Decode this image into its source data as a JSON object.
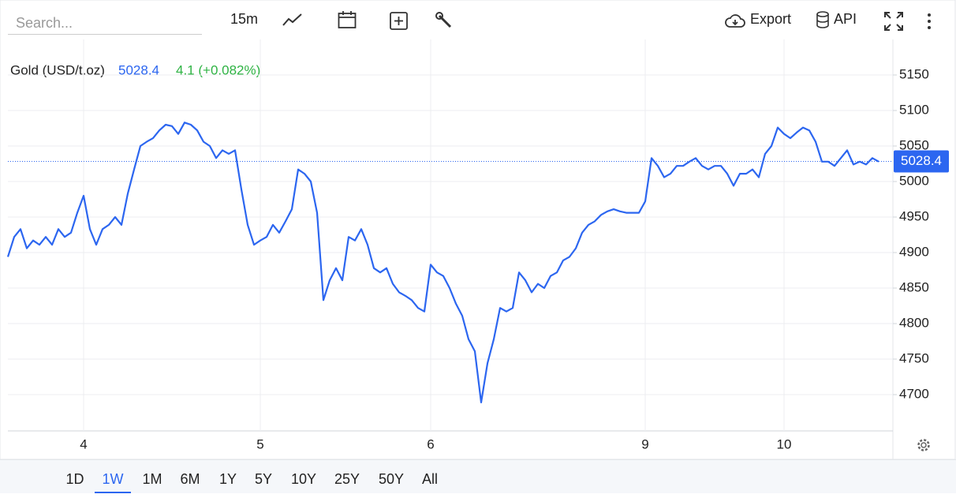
{
  "toolbar": {
    "search_placeholder": "Search...",
    "interval": "15m",
    "export": "Export",
    "api": "API"
  },
  "chart_data": {
    "type": "line",
    "title": "Gold (USD/t.oz)",
    "last_price": 5028.4,
    "change": "4.1 (+0.082%)",
    "color": "#2c66f0",
    "categories": [
      null,
      null,
      null,
      null,
      null,
      null,
      null,
      null,
      null,
      null,
      null,
      null,
      "4",
      null,
      null,
      null,
      null,
      null,
      null,
      null,
      null,
      null,
      null,
      null,
      null,
      null,
      null,
      null,
      null,
      null,
      null,
      null,
      null,
      null,
      null,
      null,
      null,
      null,
      null,
      null,
      "5",
      null,
      null,
      null,
      null,
      null,
      null,
      null,
      null,
      null,
      null,
      null,
      null,
      null,
      null,
      null,
      null,
      null,
      null,
      null,
      null,
      null,
      null,
      null,
      null,
      null,
      null,
      "6",
      null,
      null,
      null,
      null,
      null,
      null,
      null,
      null,
      null,
      null,
      null,
      null,
      null,
      null,
      null,
      null,
      null,
      null,
      null,
      null,
      null,
      null,
      null,
      null,
      null,
      null,
      null,
      null,
      null,
      null,
      null,
      null,
      null,
      "9",
      null,
      null,
      null,
      null,
      null,
      null,
      null,
      null,
      null,
      null,
      null,
      null,
      null,
      null,
      null,
      null,
      null,
      null,
      null,
      null,
      null,
      "10",
      null,
      null,
      null,
      null,
      null,
      null,
      null,
      null,
      null,
      null,
      null,
      null,
      null,
      null,
      null
    ],
    "values": [
      4894,
      4922,
      4933,
      4906,
      4917,
      4911,
      4922,
      4911,
      4933,
      4922,
      4928,
      4956,
      4980,
      4933,
      4911,
      4933,
      4939,
      4950,
      4939,
      4983,
      5017,
      5050,
      5056,
      5061,
      5072,
      5080,
      5078,
      5067,
      5083,
      5080,
      5072,
      5056,
      5050,
      5033,
      5044,
      5039,
      5044,
      4989,
      4939,
      4911,
      4917,
      4922,
      4939,
      4928,
      4944,
      4961,
      5017,
      5011,
      5000,
      4956,
      4833,
      4861,
      4878,
      4861,
      4922,
      4917,
      4933,
      4911,
      4878,
      4872,
      4878,
      4856,
      4844,
      4839,
      4833,
      4822,
      4817,
      4883,
      4872,
      4867,
      4850,
      4828,
      4811,
      4778,
      4761,
      4689,
      4744,
      4778,
      4822,
      4817,
      4822,
      4872,
      4861,
      4844,
      4856,
      4850,
      4867,
      4872,
      4889,
      4894,
      4906,
      4928,
      4939,
      4944,
      4953,
      4958,
      4961,
      4958,
      4956,
      4956,
      4956,
      4972,
      5033,
      5022,
      5006,
      5011,
      5022,
      5022,
      5028,
      5033,
      5022,
      5017,
      5022,
      5022,
      5011,
      4994,
      5011,
      5011,
      5017,
      5006,
      5039,
      5050,
      5076,
      5067,
      5061,
      5069,
      5076,
      5072,
      5056,
      5028,
      5028,
      5022,
      5033,
      5044,
      5024,
      5028,
      5024,
      5033,
      5028
    ],
    "ylim": [
      4650,
      5200
    ],
    "yticks": [
      4700,
      4750,
      4800,
      4850,
      4900,
      4950,
      5000,
      5050,
      5100,
      5150
    ],
    "grid": true
  },
  "ranges": {
    "items": [
      "1D",
      "1W",
      "1M",
      "6M",
      "1Y",
      "5Y",
      "10Y",
      "25Y",
      "50Y",
      "All"
    ],
    "active": 1
  }
}
